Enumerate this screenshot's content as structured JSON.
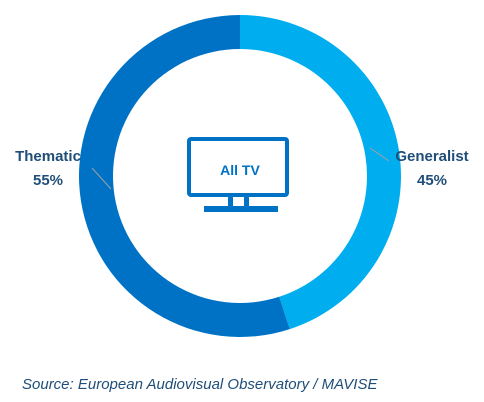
{
  "chart_data": {
    "type": "pie",
    "variant": "donut",
    "center_label": "All TV",
    "center_icon": "tv-icon",
    "slices": [
      {
        "label": "Generalist",
        "value": 45,
        "value_label": "45%",
        "color": "#00aeef"
      },
      {
        "label": "Thematic",
        "value": 55,
        "value_label": "55%",
        "color": "#0072c6"
      }
    ],
    "source": "Source: European Audiovisual Observatory / MAVISE"
  },
  "colors": {
    "label_text": "#1f4e79",
    "icon": "#0072c6",
    "leader_line": "#a0a0a0"
  }
}
